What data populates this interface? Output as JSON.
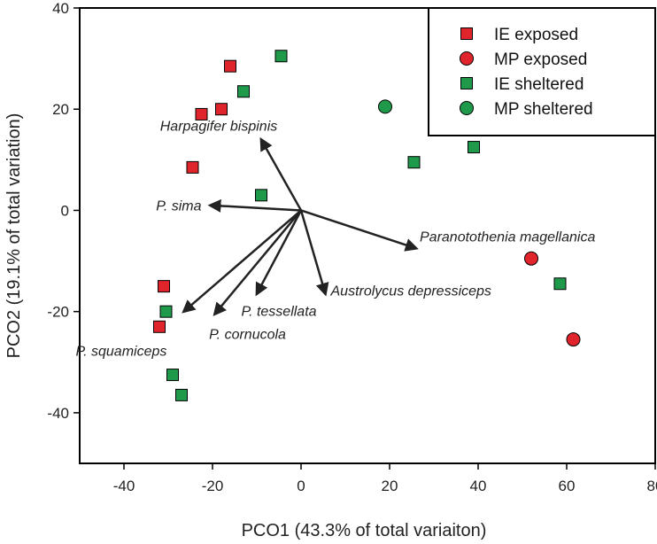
{
  "chart_data": {
    "type": "scatter",
    "title": "",
    "xlabel": "PCO1 (43.3% of total variaiton)",
    "ylabel": "PCO2 (19.1% of total variation)",
    "xlim": [
      -50,
      80
    ],
    "ylim": [
      -50,
      40
    ],
    "xticks": [
      -40,
      -20,
      0,
      20,
      40,
      60,
      80
    ],
    "yticks": [
      -40,
      -20,
      0,
      20,
      40
    ],
    "grid": false,
    "legend_position": "top-right",
    "series": [
      {
        "name": "IE exposed",
        "marker": "square",
        "color": "#e0242b",
        "points": [
          {
            "x": -16,
            "y": 28.5
          },
          {
            "x": -22.5,
            "y": 19
          },
          {
            "x": -18,
            "y": 20
          },
          {
            "x": -24.5,
            "y": 8.5
          },
          {
            "x": -31,
            "y": -15
          },
          {
            "x": -32,
            "y": -23
          }
        ]
      },
      {
        "name": "MP exposed",
        "marker": "circle",
        "color": "#e0242b",
        "points": [
          {
            "x": 52,
            "y": -9.5
          },
          {
            "x": 61.5,
            "y": -25.5
          }
        ]
      },
      {
        "name": "IE sheltered",
        "marker": "square",
        "color": "#1f9a4b",
        "points": [
          {
            "x": -4.5,
            "y": 30.5
          },
          {
            "x": -13,
            "y": 23.5
          },
          {
            "x": -9,
            "y": 3
          },
          {
            "x": 25.5,
            "y": 9.5
          },
          {
            "x": 39,
            "y": 12.5
          },
          {
            "x": 58.5,
            "y": -14.5
          },
          {
            "x": -30.5,
            "y": -20
          },
          {
            "x": -29,
            "y": -32.5
          },
          {
            "x": -27,
            "y": -36.5
          }
        ]
      },
      {
        "name": "MP sheltered",
        "marker": "circle",
        "color": "#1f9a4b",
        "points": [
          {
            "x": 19,
            "y": 20.5
          }
        ]
      }
    ],
    "vectors": [
      {
        "label": "Harpagifer bispinis",
        "x": -9,
        "y": 14,
        "label_anchor": "above"
      },
      {
        "label": "P. sima",
        "x": -20.5,
        "y": 1,
        "label_anchor": "left"
      },
      {
        "label": "Paranotothenia magellanica",
        "x": 26,
        "y": -7.5,
        "label_anchor": "right"
      },
      {
        "label": "Austrolycus depressiceps",
        "x": 5.5,
        "y": -16.5,
        "label_anchor": "right"
      },
      {
        "label": "P. tessellata",
        "x": -10,
        "y": -16.5,
        "label_anchor": "below"
      },
      {
        "label": "P. cornucola",
        "x": -19.5,
        "y": -20.5,
        "label_anchor": "below"
      },
      {
        "label": "P. squamiceps",
        "x": -26.5,
        "y": -20,
        "label_anchor": "below-left"
      }
    ]
  }
}
